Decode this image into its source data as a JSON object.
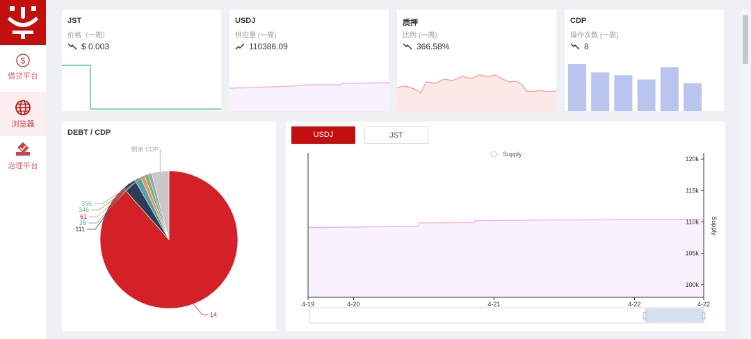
{
  "sidebar": {
    "items": [
      {
        "label": "借贷平台"
      },
      {
        "label": "浏览器"
      },
      {
        "label": "治理平台"
      }
    ]
  },
  "cards": [
    {
      "title": "JST",
      "subtitle": "价格（一周）",
      "value": "$ 0.003",
      "trend": "down"
    },
    {
      "title": "USDJ",
      "subtitle": "供应量 (一周)",
      "value": "110386.09",
      "trend": "up"
    },
    {
      "title": "质押",
      "subtitle": "比例 (一周)",
      "value": "366.58%",
      "trend": "down"
    },
    {
      "title": "CDP",
      "subtitle": "操作次数 (一周)",
      "value": "8",
      "trend": "down"
    }
  ],
  "colors": {
    "brand": "#c40f0f",
    "jst_line": "#7fd6c6",
    "usdj_line": "#f3b6e4",
    "usdj_fill": "#f7f2fb",
    "pledge_line": "#f2a7a7",
    "pledge_fill": "#fde8e8",
    "cdp_bar": "#b9c5ee",
    "pie_main": "#d42027"
  },
  "cdp_bars": [
    1.0,
    0.82,
    0.76,
    0.67,
    0.93,
    0.59
  ],
  "debt_panel": {
    "title": "DEBT / CDP",
    "chart_data": {
      "type": "pie",
      "labels": [
        "14",
        "111",
        "26",
        "61",
        "346",
        "356",
        "剩余 CDP"
      ],
      "values": [
        88.5,
        3.2,
        1.5,
        1.0,
        0.9,
        0.8,
        4.1
      ],
      "colors": [
        "#d42027",
        "#2c3e57",
        "#5aa0a8",
        "#e8946a",
        "#6fb57e",
        "#9aa0a8",
        "#c8c8c8"
      ],
      "label_colors": [
        "#d42027",
        "#333333",
        "#5aa0a8",
        "#d42027",
        "#6fb57e",
        "#6fb57e",
        "#aaaaaa"
      ]
    }
  },
  "supply_panel": {
    "tabs": [
      {
        "label": "USDJ",
        "active": true
      },
      {
        "label": "JST",
        "active": false
      }
    ],
    "chart_data": {
      "type": "area",
      "legend": "Supply",
      "ylabel": "Supply",
      "ylim": [
        98000,
        121000
      ],
      "yticks": [
        100000,
        105000,
        110000,
        115000,
        120000
      ],
      "ytick_labels": [
        "100k",
        "105k",
        "110k",
        "115k",
        "120k"
      ],
      "xtick_labels": [
        "4-19",
        "4-20",
        "4-21",
        "4-22",
        "4-22"
      ],
      "xtick_pos": [
        0,
        0.115,
        0.47,
        0.825,
        1.0
      ],
      "series": [
        {
          "values": [
            [
              0,
              109100
            ],
            [
              0.28,
              109300
            ],
            [
              0.282,
              109850
            ],
            [
              0.42,
              109900
            ],
            [
              0.422,
              110200
            ],
            [
              0.6,
              110300
            ],
            [
              0.8,
              110350
            ],
            [
              1.0,
              110390
            ]
          ]
        }
      ]
    }
  }
}
